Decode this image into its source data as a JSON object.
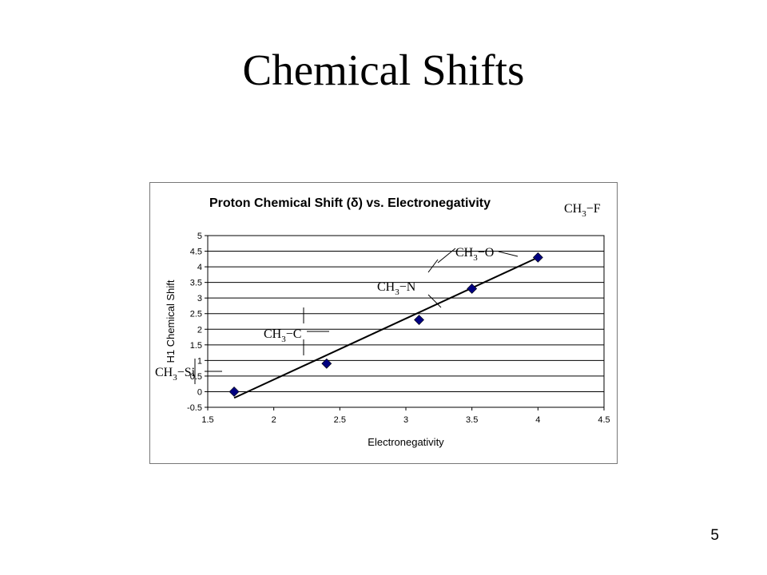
{
  "slide": {
    "title": "Chemical Shifts",
    "page_number": "5"
  },
  "chart_data": {
    "type": "scatter",
    "title": "Proton Chemical Shift (δ) vs. Electronegativity",
    "xlabel": "Electronegativity",
    "ylabel": "H1 Chemical Shift",
    "xlim": [
      1.5,
      4.5
    ],
    "ylim": [
      -0.5,
      5
    ],
    "x_ticks": [
      "1.5",
      "2",
      "2.5",
      "3",
      "3.5",
      "4",
      "4.5"
    ],
    "y_ticks": [
      "-0.5",
      "0",
      "0.5",
      "1",
      "1.5",
      "2",
      "2.5",
      "3",
      "3.5",
      "4",
      "4.5",
      "5"
    ],
    "grid": "horizontal",
    "marker_color": "#000080",
    "series": [
      {
        "x": [
          1.7,
          2.4,
          3.1,
          3.5,
          4.0
        ],
        "y": [
          0.0,
          0.9,
          2.3,
          3.3,
          4.3
        ]
      }
    ],
    "trendline": {
      "x": [
        1.7,
        4.0
      ],
      "y": [
        -0.2,
        4.3
      ]
    },
    "annotations": [
      {
        "base": "CH",
        "sub": "3",
        "rest": "−Si"
      },
      {
        "base": "CH",
        "sub": "3",
        "rest": "−C"
      },
      {
        "base": "CH",
        "sub": "3",
        "rest": "−N"
      },
      {
        "base": "CH",
        "sub": "3",
        "rest": "−O"
      },
      {
        "base": "CH",
        "sub": "3",
        "rest": "−F"
      }
    ]
  }
}
